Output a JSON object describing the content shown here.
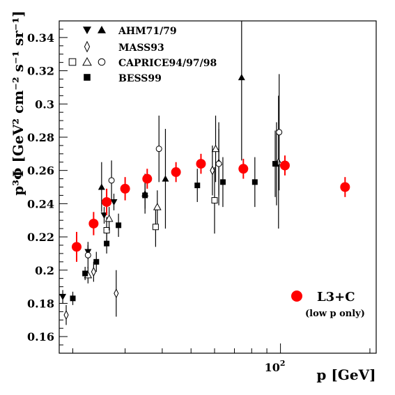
{
  "chart_data": {
    "type": "scatter",
    "title": "",
    "xlabel": "p  [GeV]",
    "ylabel": "p³Φ [GeV² cm⁻² s⁻¹ sr⁻¹]",
    "xscale": "log",
    "xlim": [
      18,
      210
    ],
    "ylim": [
      0.15,
      0.35
    ],
    "x_ticks": [
      {
        "value": 100,
        "label": "10²"
      }
    ],
    "y_ticks": [
      0.16,
      0.18,
      0.2,
      0.22,
      0.24,
      0.26,
      0.28,
      0.3,
      0.32,
      0.34
    ],
    "y_tick_labels": [
      "0.16",
      "0.18",
      "0.2",
      "0.22",
      "0.24",
      "0.26",
      "0.28",
      "0.3",
      "0.32",
      "0.34"
    ],
    "grid": false,
    "legend_placement": "top-left",
    "legend": [
      {
        "label": "AHM71/79",
        "markers": [
          "triangle-down-filled",
          "triangle-up-filled"
        ]
      },
      {
        "label": "MASS93",
        "markers": [
          "diamond-open"
        ]
      },
      {
        "label": "CAPRICE94/97/98",
        "markers": [
          "square-open",
          "triangle-open",
          "circle-open"
        ]
      },
      {
        "label": "BESS99",
        "markers": [
          "square-filled"
        ]
      }
    ],
    "annotation": {
      "label": "L3+C",
      "sublabel": "(low p only)",
      "marker": "circle-filled-red"
    },
    "colors": {
      "l3c": "#ff0000",
      "other": "#000000",
      "frame": "#000000"
    },
    "series": [
      {
        "name": "AHM71/79",
        "marker": "triangle-down-filled",
        "points": [
          [
            18.5,
            0.184,
            0.004
          ],
          [
            22.5,
            0.211,
            0.004
          ],
          [
            25.5,
            0.233,
            0.005
          ],
          [
            27.5,
            0.241,
            0.005
          ]
        ]
      },
      {
        "name": "AHM71/79",
        "marker": "triangle-up-filled",
        "points": [
          [
            25.0,
            0.25,
            0.015
          ],
          [
            35.0,
            0.246,
            0.012
          ],
          [
            41.0,
            0.255,
            0.03
          ],
          [
            62.0,
            0.265,
            0.02
          ],
          [
            74.0,
            0.316,
            0.05
          ],
          [
            97.0,
            0.264,
            0.025
          ]
        ]
      },
      {
        "name": "MASS93",
        "marker": "diamond-open",
        "points": [
          [
            19.0,
            0.173,
            0.006
          ],
          [
            23.5,
            0.199,
            0.006
          ],
          [
            28.0,
            0.186,
            0.014
          ],
          [
            59.0,
            0.26,
            0.015
          ]
        ]
      },
      {
        "name": "CAPRICE94/97/98",
        "marker": "square-open",
        "points": [
          [
            26.0,
            0.224,
            0.008
          ],
          [
            38.0,
            0.226,
            0.012
          ],
          [
            60.0,
            0.242,
            0.02
          ]
        ]
      },
      {
        "name": "CAPRICE94/97/98",
        "marker": "triangle-open",
        "points": [
          [
            22.5,
            0.197,
            0.005
          ],
          [
            26.5,
            0.231,
            0.007
          ],
          [
            38.5,
            0.238,
            0.01
          ],
          [
            60.5,
            0.273,
            0.02
          ],
          [
            98.5,
            0.265,
            0.04
          ]
        ]
      },
      {
        "name": "CAPRICE94/97/98",
        "marker": "circle-open",
        "points": [
          [
            22.5,
            0.209,
            0.008
          ],
          [
            27.0,
            0.254,
            0.012
          ],
          [
            39.0,
            0.273,
            0.02
          ],
          [
            62.0,
            0.264,
            0.025
          ],
          [
            99.0,
            0.283,
            0.035
          ]
        ]
      },
      {
        "name": "BESS99",
        "marker": "square-filled",
        "points": [
          [
            20.0,
            0.183,
            0.004
          ],
          [
            22.0,
            0.198,
            0.004
          ],
          [
            24.0,
            0.205,
            0.006
          ],
          [
            26.0,
            0.216,
            0.006
          ],
          [
            28.5,
            0.227,
            0.007
          ],
          [
            35.0,
            0.245,
            0.008
          ],
          [
            52.5,
            0.251,
            0.01
          ],
          [
            64.0,
            0.253,
            0.015
          ],
          [
            82.0,
            0.253,
            0.015
          ],
          [
            96.0,
            0.264,
            0.02
          ]
        ]
      },
      {
        "name": "L3+C",
        "marker": "circle-filled-red",
        "points": [
          [
            20.6,
            0.214,
            0.009
          ],
          [
            23.5,
            0.228,
            0.007
          ],
          [
            26.0,
            0.241,
            0.008
          ],
          [
            30.0,
            0.249,
            0.007
          ],
          [
            35.6,
            0.255,
            0.006
          ],
          [
            44.5,
            0.259,
            0.006
          ],
          [
            54.0,
            0.264,
            0.006
          ],
          [
            75.0,
            0.261,
            0.006
          ],
          [
            103.5,
            0.263,
            0.006
          ],
          [
            165.0,
            0.25,
            0.006
          ]
        ]
      }
    ]
  }
}
